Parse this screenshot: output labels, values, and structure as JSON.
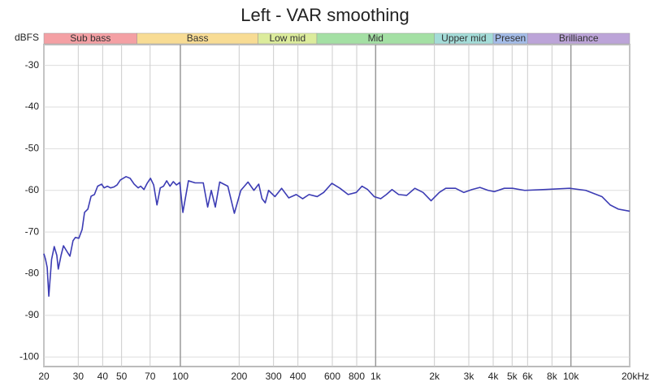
{
  "chart_data": {
    "type": "line",
    "title": "Left - VAR smoothing",
    "y_label": "dBFS",
    "log_x": true,
    "grid": true,
    "xlim": [
      20,
      20000
    ],
    "ylim": [
      -102.3,
      -25
    ],
    "xticks": [
      20,
      30,
      40,
      50,
      70,
      100,
      200,
      300,
      400,
      600,
      800,
      {
        "value": 1000,
        "label": "1k"
      },
      {
        "value": 2000,
        "label": "2k"
      },
      {
        "value": 3000,
        "label": "3k"
      },
      {
        "value": 4000,
        "label": "4k"
      },
      {
        "value": 5000,
        "label": "5k"
      },
      {
        "value": 6000,
        "label": "6k"
      },
      {
        "value": 8000,
        "label": "8k"
      },
      {
        "value": 10000,
        "label": "10k"
      },
      {
        "value": 20000,
        "label": "20kHz"
      }
    ],
    "yticks": [
      -30,
      -40,
      -50,
      -60,
      -70,
      -80,
      -90,
      -100
    ],
    "bands": [
      {
        "name": "Sub bass",
        "start": 20,
        "end": 60,
        "color": "#f4a0a4"
      },
      {
        "name": "Bass",
        "start": 60,
        "end": 250,
        "color": "#f8dc94"
      },
      {
        "name": "Low mid",
        "start": 250,
        "end": 500,
        "color": "#dcec9c"
      },
      {
        "name": "Mid",
        "start": 500,
        "end": 2000,
        "color": "#a4e0a4"
      },
      {
        "name": "Upper mid",
        "start": 2000,
        "end": 4000,
        "color": "#a4dcd8"
      },
      {
        "name": "Presen",
        "start": 4000,
        "end": 6000,
        "color": "#a4bce8"
      },
      {
        "name": "Brilliance",
        "start": 6000,
        "end": 20000,
        "color": "#bca4d8"
      }
    ],
    "series": [
      {
        "color": "#3c3cb4",
        "x": [
          20,
          20.4,
          20.8,
          21.2,
          21.9,
          22.6,
          23.3,
          23.7,
          24.5,
          25.2,
          26.2,
          27.2,
          28.2,
          29.0,
          30.2,
          31.4,
          32.3,
          33.6,
          34.9,
          36.3,
          37.7,
          39.5,
          40.7,
          42.3,
          43.9,
          45.6,
          47.4,
          49.3,
          52.7,
          55.3,
          58.0,
          60.8,
          62.6,
          65.1,
          67.6,
          70.3,
          73.0,
          75.9,
          78.9,
          82.0,
          85.1,
          88.5,
          92.0,
          95.5,
          99.3,
          103,
          110,
          119,
          131,
          138,
          144,
          151,
          159,
          175,
          189,
          204,
          222,
          238,
          252,
          262,
          272,
          283,
          305,
          330,
          359,
          392,
          423,
          456,
          502,
          542,
          597,
          657,
          723,
          796,
          851,
          910,
          983,
          1062,
          1135,
          1213,
          1311,
          1442,
          1588,
          1749,
          1923,
          2118,
          2286,
          2565,
          2825,
          3112,
          3420,
          3767,
          4064,
          4560,
          5024,
          5800,
          7380,
          9840,
          11910,
          14420,
          15890,
          17500,
          20000
        ],
        "values": [
          -75.2,
          -76.6,
          -78.5,
          -85.4,
          -76.6,
          -73.5,
          -75.6,
          -78.9,
          -75.6,
          -73.3,
          -74.6,
          -75.8,
          -72.1,
          -71.3,
          -71.5,
          -69.4,
          -65.3,
          -64.5,
          -61.4,
          -61.0,
          -59.0,
          -58.5,
          -59.4,
          -59.0,
          -59.4,
          -59.2,
          -58.7,
          -57.5,
          -56.7,
          -57.1,
          -58.5,
          -59.4,
          -59.0,
          -59.8,
          -58.3,
          -57.1,
          -58.7,
          -63.5,
          -59.4,
          -59.0,
          -57.7,
          -59.0,
          -57.9,
          -58.7,
          -58.1,
          -65.3,
          -57.7,
          -58.2,
          -58.2,
          -64.0,
          -60.0,
          -64.0,
          -58.0,
          -59.0,
          -65.5,
          -60.0,
          -58.0,
          -60.0,
          -58.5,
          -62.0,
          -63.0,
          -60.0,
          -61.5,
          -59.5,
          -61.8,
          -61.0,
          -62.0,
          -61.0,
          -61.5,
          -60.5,
          -58.3,
          -59.5,
          -61.0,
          -60.5,
          -59.0,
          -59.8,
          -61.5,
          -62.0,
          -61.0,
          -59.8,
          -61.0,
          -61.2,
          -59.5,
          -60.5,
          -62.5,
          -60.5,
          -59.5,
          -59.5,
          -60.5,
          -59.8,
          -59.3,
          -60.0,
          -60.3,
          -59.5,
          -59.5,
          -60.0,
          -59.8,
          -59.5,
          -60.0,
          -61.5,
          -63.5,
          -64.5,
          -65.0
        ]
      }
    ]
  }
}
